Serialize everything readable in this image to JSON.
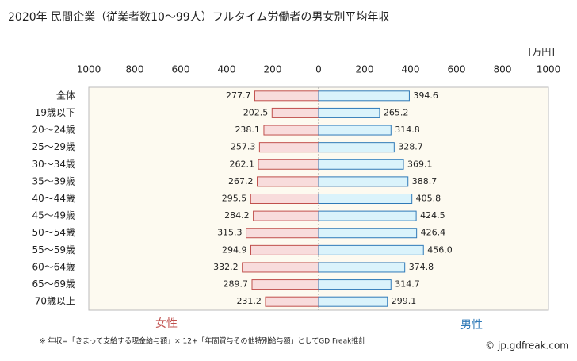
{
  "chart_data": {
    "type": "butterfly-bar",
    "title": "2020年 民間企業（従業者数10〜99人）フルタイム労働者の男女別平均年収",
    "unit": "[万円]",
    "categories": [
      "全体",
      "19歳以下",
      "20〜24歳",
      "25〜29歳",
      "30〜34歳",
      "35〜39歳",
      "40〜44歳",
      "45〜49歳",
      "50〜54歳",
      "55〜59歳",
      "60〜64歳",
      "65〜69歳",
      "70歳以上"
    ],
    "series": [
      {
        "name": "女性",
        "side": "left",
        "color": "#c0504d",
        "fill": "#f8dcdc",
        "values": [
          277.7,
          202.5,
          238.1,
          257.3,
          262.1,
          267.2,
          295.5,
          284.2,
          315.3,
          294.9,
          332.2,
          289.7,
          231.2
        ],
        "value_labels": [
          "277.7",
          "202.5",
          "238.1",
          "257.3",
          "262.1",
          "267.2",
          "295.5",
          "284.2",
          "315.3",
          "294.9",
          "332.2",
          "289.7",
          "231.2"
        ]
      },
      {
        "name": "男性",
        "side": "right",
        "color": "#2f7ab8",
        "fill": "#daf3fb",
        "values": [
          394.6,
          265.2,
          314.8,
          328.7,
          369.1,
          388.7,
          405.8,
          424.5,
          426.4,
          456.0,
          374.8,
          314.7,
          299.1
        ],
        "value_labels": [
          "394.6",
          "265.2",
          "314.8",
          "328.7",
          "369.1",
          "388.7",
          "405.8",
          "424.5",
          "426.4",
          "456.0",
          "374.8",
          "314.7",
          "299.1"
        ]
      }
    ],
    "xlim": [
      0,
      1000
    ],
    "xticks": [
      0,
      200,
      400,
      600,
      800,
      1000
    ],
    "note": "※ 年収=「きまって支給する現金給与額」× 12+「年間賞与その他特別給与額」としてGD Freak推計",
    "source": "© jp.gdfreak.com"
  }
}
